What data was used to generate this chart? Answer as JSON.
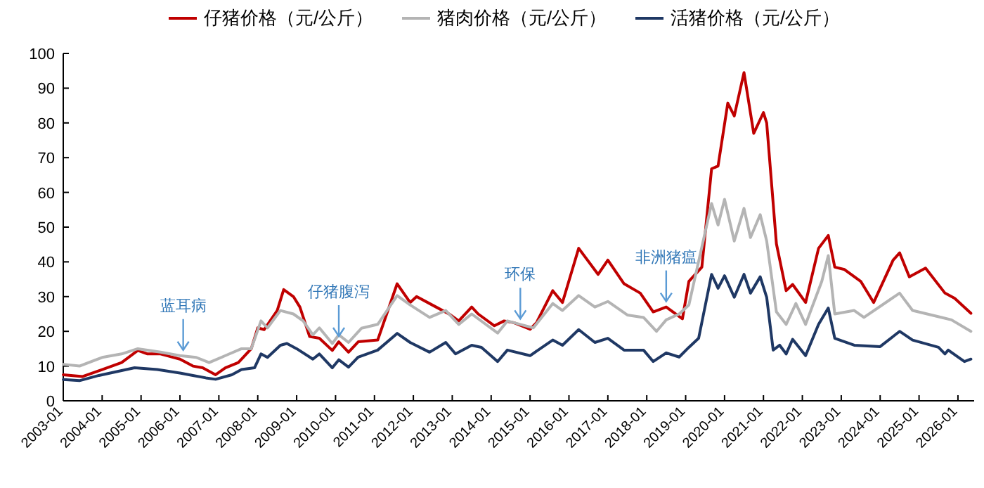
{
  "chart_data": {
    "type": "line",
    "legend": "top",
    "grid": false,
    "ylim": [
      0,
      100
    ],
    "yticks": [
      0,
      10,
      20,
      30,
      40,
      50,
      60,
      70,
      80,
      90,
      100
    ],
    "xlim": [
      "2003-01",
      "2026-06"
    ],
    "xticks": [
      "2003-01",
      "2004-01",
      "2005-01",
      "2006-01",
      "2007-01",
      "2008-01",
      "2009-01",
      "2010-01",
      "2011-01",
      "2012-01",
      "2013-01",
      "2014-01",
      "2015-01",
      "2016-01",
      "2017-01",
      "2018-01",
      "2019-01",
      "2020-01",
      "2021-01",
      "2022-01",
      "2023-01",
      "2024-01",
      "2025-01",
      "2026-01"
    ],
    "series": [
      {
        "name": "仔猪价格（元/公斤）",
        "color": "#c00000",
        "x": [
          "2003-01",
          "2003-07",
          "2004-01",
          "2004-07",
          "2004-12",
          "2005-03",
          "2005-07",
          "2006-01",
          "2006-05",
          "2006-08",
          "2006-12",
          "2007-03",
          "2007-07",
          "2007-11",
          "2008-01",
          "2008-03",
          "2008-07",
          "2008-09",
          "2008-12",
          "2009-02",
          "2009-05",
          "2009-08",
          "2009-12",
          "2010-02",
          "2010-05",
          "2010-08",
          "2011-02",
          "2011-08",
          "2011-12",
          "2012-02",
          "2012-08",
          "2012-12",
          "2013-03",
          "2013-07",
          "2013-09",
          "2014-02",
          "2014-05",
          "2014-08",
          "2015-01",
          "2015-03",
          "2015-08",
          "2015-11",
          "2016-04",
          "2016-10",
          "2017-01",
          "2017-06",
          "2017-11",
          "2018-03",
          "2018-07",
          "2018-12",
          "2019-02",
          "2019-06",
          "2019-09",
          "2019-11",
          "2020-02",
          "2020-04",
          "2020-07",
          "2020-10",
          "2021-01",
          "2021-02",
          "2021-05",
          "2021-08",
          "2021-10",
          "2022-02",
          "2022-06",
          "2022-09",
          "2022-11",
          "2023-02",
          "2023-07",
          "2023-11",
          "2024-05",
          "2024-07",
          "2024-10",
          "2025-03",
          "2025-09",
          "2025-12",
          "2026-05"
        ],
        "values": [
          7.5,
          7,
          9,
          11,
          14.5,
          13.5,
          13.5,
          12,
          10,
          9.5,
          7.5,
          9.5,
          11,
          15,
          21,
          20.5,
          26,
          32,
          30,
          27,
          18.5,
          18,
          14.5,
          17,
          14,
          17,
          17.5,
          33.7,
          28.3,
          30,
          27,
          25,
          23,
          27,
          25,
          21.6,
          23,
          22.5,
          20.6,
          22.5,
          31.7,
          28.3,
          43.9,
          36.4,
          40.5,
          33.7,
          31,
          25.6,
          27,
          23.6,
          34.4,
          38.5,
          66.8,
          67.6,
          85.7,
          82,
          94.5,
          77,
          83,
          80,
          45.2,
          31.7,
          33.5,
          28.3,
          43.9,
          47.6,
          38.5,
          37.8,
          34.4,
          28.3,
          40.5,
          42.6,
          35.7,
          38.2,
          31,
          29.5,
          25.2
        ]
      },
      {
        "name": "猪肉价格（元/公斤）",
        "color": "#b4b4b4",
        "x": [
          "2003-01",
          "2003-06",
          "2004-01",
          "2004-07",
          "2004-12",
          "2005-07",
          "2006-01",
          "2006-06",
          "2006-10",
          "2007-03",
          "2007-08",
          "2007-11",
          "2008-02",
          "2008-04",
          "2008-08",
          "2008-12",
          "2009-03",
          "2009-06",
          "2009-08",
          "2009-12",
          "2010-02",
          "2010-05",
          "2010-09",
          "2011-02",
          "2011-08",
          "2011-12",
          "2012-06",
          "2012-11",
          "2013-03",
          "2013-07",
          "2014-03",
          "2014-06",
          "2014-10",
          "2015-02",
          "2015-08",
          "2015-11",
          "2016-04",
          "2016-09",
          "2017-01",
          "2017-07",
          "2017-12",
          "2018-04",
          "2018-07",
          "2018-11",
          "2019-02",
          "2019-09",
          "2019-11",
          "2020-01",
          "2020-04",
          "2020-07",
          "2020-09",
          "2020-12",
          "2021-02",
          "2021-05",
          "2021-08",
          "2021-11",
          "2022-02",
          "2022-07",
          "2022-09",
          "2022-11",
          "2023-05",
          "2023-08",
          "2024-07",
          "2024-11",
          "2025-08",
          "2025-11",
          "2026-05"
        ],
        "values": [
          10.5,
          10,
          12.5,
          13.5,
          15,
          14,
          13,
          12.5,
          11,
          13,
          15,
          15,
          23,
          21,
          26,
          25,
          23,
          19,
          21,
          16.5,
          19,
          16.8,
          20.9,
          22,
          30.3,
          27.6,
          24,
          26,
          22,
          25,
          19.5,
          23,
          22,
          21,
          28,
          26,
          30.3,
          27,
          28.6,
          24.7,
          24,
          20,
          23.3,
          25,
          27.6,
          56.8,
          50.6,
          58,
          46,
          55.4,
          47,
          53.6,
          46,
          25.6,
          22,
          28,
          22,
          34.4,
          41.8,
          25,
          26,
          24,
          31,
          26,
          24,
          23.3,
          20
        ]
      },
      {
        "name": "活猪价格（元/公斤）",
        "color": "#1f3864",
        "x": [
          "2003-01",
          "2003-06",
          "2003-12",
          "2004-06",
          "2004-11",
          "2005-06",
          "2006-01",
          "2006-05",
          "2006-09",
          "2006-12",
          "2007-05",
          "2007-08",
          "2007-12",
          "2008-02",
          "2008-04",
          "2008-08",
          "2008-10",
          "2009-01",
          "2009-06",
          "2009-08",
          "2009-12",
          "2010-02",
          "2010-05",
          "2010-08",
          "2011-02",
          "2011-08",
          "2011-12",
          "2012-06",
          "2012-11",
          "2013-02",
          "2013-07",
          "2013-10",
          "2014-03",
          "2014-06",
          "2015-01",
          "2015-08",
          "2015-11",
          "2016-04",
          "2016-09",
          "2017-01",
          "2017-06",
          "2017-12",
          "2018-03",
          "2018-07",
          "2018-11",
          "2019-02",
          "2019-05",
          "2019-09",
          "2019-11",
          "2020-01",
          "2020-04",
          "2020-07",
          "2020-09",
          "2020-12",
          "2021-02",
          "2021-04",
          "2021-06",
          "2021-08",
          "2021-10",
          "2022-02",
          "2022-06",
          "2022-09",
          "2022-11",
          "2023-05",
          "2024-01",
          "2024-07",
          "2024-11",
          "2025-07",
          "2025-09",
          "2025-10",
          "2026-03",
          "2026-05"
        ],
        "values": [
          6.1,
          5.8,
          7.3,
          8.5,
          9.5,
          9,
          8,
          7.3,
          6.6,
          6.2,
          7.5,
          9,
          9.5,
          13.5,
          12.5,
          16,
          16.5,
          15,
          12,
          13.5,
          9.5,
          11.8,
          9.7,
          12.6,
          14.6,
          19.4,
          16.8,
          14,
          16.8,
          13.5,
          16,
          15.4,
          11.3,
          14.6,
          13,
          17.5,
          16,
          20.5,
          16.8,
          18,
          14.6,
          14.6,
          11.3,
          13.8,
          12.6,
          15.4,
          18,
          36.4,
          32.4,
          36,
          29.8,
          36.4,
          31,
          35.7,
          29.8,
          14.6,
          16,
          13.5,
          17.7,
          13,
          22,
          26.7,
          18,
          16,
          15.6,
          20,
          17.5,
          15.4,
          13.5,
          14.6,
          11.3,
          12
        ]
      }
    ],
    "annotations": [
      {
        "text": "蓝耳病",
        "x": "2006-02",
        "y": 13
      },
      {
        "text": "仔猪腹泻",
        "x": "2010-02",
        "y": 17
      },
      {
        "text": "环保",
        "x": "2014-10",
        "y": 22
      },
      {
        "text": "非洲猪瘟",
        "x": "2018-07",
        "y": 27
      }
    ]
  }
}
